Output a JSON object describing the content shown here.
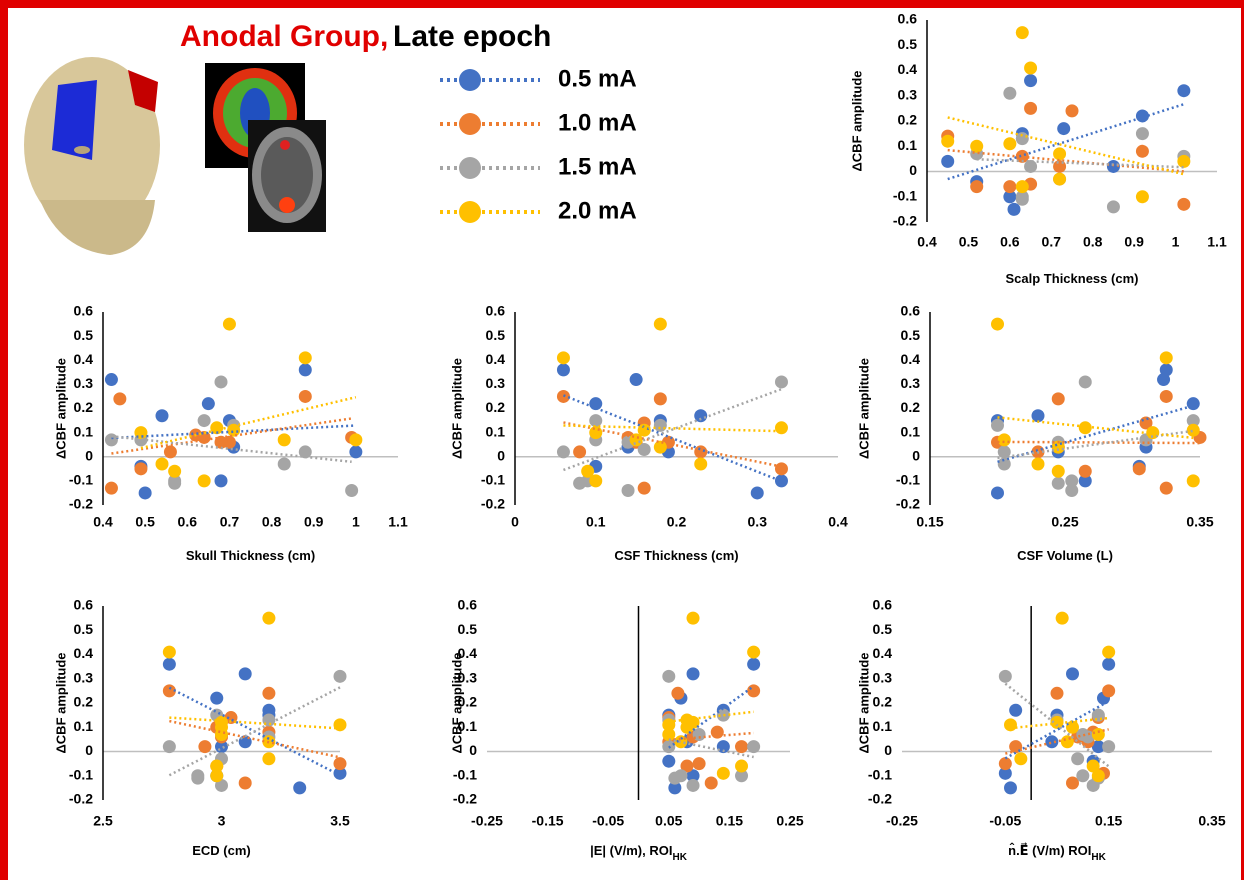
{
  "title_group": "Anodal Group,",
  "title_epoch": "Late epoch",
  "chart_data": [
    {
      "type": "scatter",
      "xlabel": "Scalp Thickness (cm)",
      "ylabel": "ΔCBF amplitude",
      "xlim": [
        0.4,
        1.1
      ],
      "xticks": [
        0.4,
        0.5,
        0.6,
        0.7,
        0.8,
        0.9,
        1,
        1.1
      ],
      "ylim": [
        -0.2,
        0.6
      ],
      "yticks": [
        -0.2,
        -0.1,
        0,
        0.1,
        0.2,
        0.3,
        0.4,
        0.5,
        0.6
      ],
      "series": [
        {
          "name": "0.5 mA",
          "color": "#4472c4",
          "x": [
            0.65,
            1.02,
            0.92,
            0.73,
            0.63,
            0.45,
            0.85,
            0.52,
            0.6,
            0.61
          ],
          "values": [
            0.36,
            0.32,
            0.22,
            0.17,
            0.15,
            0.04,
            0.02,
            -0.04,
            -0.1,
            -0.15
          ]
        },
        {
          "name": "1.0 mA",
          "color": "#ed7d31",
          "x": [
            0.65,
            0.75,
            0.45,
            0.92,
            0.63,
            0.72,
            0.65,
            0.52,
            1.02,
            0.6
          ],
          "values": [
            0.25,
            0.24,
            0.14,
            0.08,
            0.06,
            0.02,
            -0.05,
            -0.06,
            -0.13,
            -0.06
          ]
        },
        {
          "name": "1.5 mA",
          "color": "#a5a5a5",
          "x": [
            0.6,
            0.92,
            0.63,
            0.52,
            1.02,
            0.65,
            0.72,
            0.63,
            0.63,
            0.85
          ],
          "values": [
            0.31,
            0.15,
            0.13,
            0.07,
            0.06,
            0.02,
            -0.03,
            -0.1,
            -0.11,
            -0.14
          ]
        },
        {
          "name": "2.0 mA",
          "color": "#ffc000",
          "x": [
            0.63,
            0.65,
            0.45,
            0.6,
            0.52,
            0.72,
            1.02,
            0.72,
            0.63,
            0.92
          ],
          "values": [
            0.55,
            0.41,
            0.12,
            0.11,
            0.1,
            0.07,
            0.04,
            -0.03,
            -0.06,
            -0.1
          ]
        }
      ]
    },
    {
      "type": "scatter",
      "xlabel": "Skull Thickness (cm)",
      "ylabel": "ΔCBF amplitude",
      "xlim": [
        0.4,
        1.1
      ],
      "xticks": [
        0.4,
        0.5,
        0.6,
        0.7,
        0.8,
        0.9,
        1,
        1.1
      ],
      "ylim": [
        -0.2,
        0.6
      ],
      "yticks": [
        -0.2,
        -0.1,
        0,
        0.1,
        0.2,
        0.3,
        0.4,
        0.5,
        0.6
      ],
      "series": [
        {
          "name": "0.5 mA",
          "color": "#4472c4",
          "x": [
            0.88,
            0.42,
            0.65,
            0.54,
            0.7,
            0.71,
            1.0,
            0.49,
            0.68,
            0.5
          ],
          "values": [
            0.36,
            0.32,
            0.22,
            0.17,
            0.15,
            0.04,
            0.02,
            -0.04,
            -0.1,
            -0.15
          ]
        },
        {
          "name": "1.0 mA",
          "color": "#ed7d31",
          "x": [
            0.88,
            0.44,
            0.99,
            0.64,
            0.7,
            0.56,
            0.49,
            0.68,
            0.42,
            0.62
          ],
          "values": [
            0.25,
            0.24,
            0.08,
            0.08,
            0.06,
            0.02,
            -0.05,
            0.06,
            -0.13,
            0.09
          ]
        },
        {
          "name": "1.5 mA",
          "color": "#a5a5a5",
          "x": [
            0.68,
            0.64,
            0.42,
            0.49,
            0.71,
            0.88,
            0.83,
            0.57,
            0.57,
            0.99
          ],
          "values": [
            0.31,
            0.15,
            0.07,
            0.07,
            0.13,
            0.02,
            -0.03,
            -0.1,
            -0.11,
            -0.14
          ]
        },
        {
          "name": "2.0 mA",
          "color": "#ffc000",
          "x": [
            0.7,
            0.88,
            0.67,
            0.71,
            0.49,
            1.0,
            0.83,
            0.54,
            0.57,
            0.64
          ],
          "values": [
            0.55,
            0.41,
            0.12,
            0.11,
            0.1,
            0.07,
            0.07,
            -0.03,
            -0.06,
            -0.1
          ]
        }
      ]
    },
    {
      "type": "scatter",
      "xlabel": "CSF Thickness (cm)",
      "ylabel": "ΔCBF amplitude",
      "xlim": [
        0,
        0.4
      ],
      "xticks": [
        0,
        0.1,
        0.2,
        0.3,
        0.4
      ],
      "ylim": [
        -0.2,
        0.6
      ],
      "yticks": [
        -0.2,
        -0.1,
        0,
        0.1,
        0.2,
        0.3,
        0.4,
        0.5,
        0.6
      ],
      "series": [
        {
          "name": "0.5 mA",
          "color": "#4472c4",
          "x": [
            0.06,
            0.15,
            0.1,
            0.23,
            0.18,
            0.14,
            0.19,
            0.1,
            0.33,
            0.3
          ],
          "values": [
            0.36,
            0.32,
            0.22,
            0.17,
            0.15,
            0.04,
            0.02,
            -0.04,
            -0.1,
            -0.15
          ]
        },
        {
          "name": "1.0 mA",
          "color": "#ed7d31",
          "x": [
            0.06,
            0.18,
            0.16,
            0.14,
            0.15,
            0.23,
            0.33,
            0.08,
            0.16,
            0.19
          ],
          "values": [
            0.25,
            0.24,
            0.14,
            0.08,
            0.06,
            0.02,
            -0.05,
            0.02,
            -0.13,
            0.06
          ]
        },
        {
          "name": "1.5 mA",
          "color": "#a5a5a5",
          "x": [
            0.33,
            0.1,
            0.18,
            0.1,
            0.14,
            0.06,
            0.16,
            0.09,
            0.08,
            0.14
          ],
          "values": [
            0.31,
            0.15,
            0.13,
            0.07,
            0.06,
            0.02,
            0.03,
            -0.1,
            -0.11,
            -0.14
          ]
        },
        {
          "name": "2.0 mA",
          "color": "#ffc000",
          "x": [
            0.18,
            0.06,
            0.33,
            0.16,
            0.1,
            0.15,
            0.18,
            0.23,
            0.09,
            0.1
          ],
          "values": [
            0.55,
            0.41,
            0.12,
            0.11,
            0.1,
            0.07,
            0.04,
            -0.03,
            -0.06,
            -0.1
          ]
        }
      ]
    },
    {
      "type": "scatter",
      "xlabel": "CSF Volume (L)",
      "ylabel": "ΔCBF amplitude",
      "xlim": [
        0.15,
        0.35
      ],
      "xticks": [
        0.15,
        0.25,
        0.35
      ],
      "ylim": [
        -0.2,
        0.6
      ],
      "yticks": [
        -0.2,
        -0.1,
        0,
        0.1,
        0.2,
        0.3,
        0.4,
        0.5,
        0.6
      ],
      "series": [
        {
          "name": "0.5 mA",
          "color": "#4472c4",
          "x": [
            0.325,
            0.323,
            0.345,
            0.23,
            0.2,
            0.31,
            0.245,
            0.305,
            0.265,
            0.2
          ],
          "values": [
            0.36,
            0.32,
            0.22,
            0.17,
            0.15,
            0.04,
            0.02,
            -0.04,
            -0.1,
            -0.15
          ]
        },
        {
          "name": "1.0 mA",
          "color": "#ed7d31",
          "x": [
            0.325,
            0.245,
            0.31,
            0.35,
            0.2,
            0.23,
            0.305,
            0.265,
            0.325,
            0.245
          ],
          "values": [
            0.25,
            0.24,
            0.14,
            0.08,
            0.06,
            0.02,
            -0.05,
            -0.06,
            -0.13,
            0.04
          ]
        },
        {
          "name": "1.5 mA",
          "color": "#a5a5a5",
          "x": [
            0.265,
            0.345,
            0.2,
            0.31,
            0.245,
            0.205,
            0.205,
            0.255,
            0.255,
            0.245
          ],
          "values": [
            0.31,
            0.15,
            0.13,
            0.07,
            0.06,
            0.02,
            -0.03,
            -0.1,
            -0.14,
            -0.11
          ]
        },
        {
          "name": "2.0 mA",
          "color": "#ffc000",
          "x": [
            0.2,
            0.325,
            0.265,
            0.315,
            0.345,
            0.205,
            0.245,
            0.23,
            0.245,
            0.345
          ],
          "values": [
            0.55,
            0.41,
            0.12,
            0.1,
            0.11,
            0.07,
            0.04,
            -0.03,
            -0.06,
            -0.1
          ]
        }
      ]
    },
    {
      "type": "scatter",
      "xlabel": "ECD (cm)",
      "ylabel": "ΔCBF amplitude",
      "xlim": [
        2.5,
        3.5
      ],
      "xticks": [
        2.5,
        3,
        3.5
      ],
      "ylim": [
        -0.2,
        0.6
      ],
      "yticks": [
        -0.2,
        -0.1,
        0,
        0.1,
        0.2,
        0.3,
        0.4,
        0.5,
        0.6
      ],
      "series": [
        {
          "name": "0.5 mA",
          "color": "#4472c4",
          "x": [
            2.78,
            3.1,
            2.98,
            3.2,
            3.2,
            3.1,
            3.0,
            3.5,
            2.98,
            3.33
          ],
          "values": [
            0.36,
            0.32,
            0.22,
            0.17,
            0.15,
            0.04,
            0.02,
            -0.09,
            -0.1,
            -0.15
          ]
        },
        {
          "name": "1.0 mA",
          "color": "#ed7d31",
          "x": [
            2.78,
            3.2,
            3.04,
            3.2,
            3.0,
            2.93,
            3.5,
            2.98,
            3.1,
            2.98
          ],
          "values": [
            0.25,
            0.24,
            0.14,
            0.08,
            0.06,
            0.02,
            -0.05,
            -0.06,
            -0.13,
            0.1
          ]
        },
        {
          "name": "1.5 mA",
          "color": "#a5a5a5",
          "x": [
            3.5,
            2.98,
            3.2,
            3.0,
            3.2,
            2.78,
            3.0,
            2.9,
            2.9,
            3.0
          ],
          "values": [
            0.31,
            0.15,
            0.13,
            0.07,
            0.06,
            0.02,
            -0.03,
            -0.1,
            -0.11,
            -0.14
          ]
        },
        {
          "name": "2.0 mA",
          "color": "#ffc000",
          "x": [
            3.2,
            2.78,
            3.5,
            3.0,
            3.0,
            3.0,
            3.2,
            3.2,
            2.98,
            2.98
          ],
          "values": [
            0.55,
            0.41,
            0.11,
            0.12,
            0.1,
            0.07,
            0.04,
            -0.03,
            -0.06,
            -0.1
          ]
        }
      ]
    },
    {
      "type": "scatter",
      "xlabel": "|E| (V/m), ROI",
      "xlabel_sub": "HK",
      "ylabel": "ΔCBF amplitude",
      "xlim": [
        -0.25,
        0.25
      ],
      "xticks": [
        -0.25,
        -0.15,
        -0.05,
        0.05,
        0.15,
        0.25
      ],
      "ylim": [
        -0.2,
        0.6
      ],
      "yticks": [
        -0.2,
        -0.1,
        0,
        0.1,
        0.2,
        0.3,
        0.4,
        0.5,
        0.6
      ],
      "series": [
        {
          "name": "0.5 mA",
          "color": "#4472c4",
          "x": [
            0.19,
            0.09,
            0.07,
            0.14,
            0.05,
            0.08,
            0.14,
            0.05,
            0.09,
            0.06
          ],
          "values": [
            0.36,
            0.32,
            0.22,
            0.17,
            0.15,
            0.04,
            0.02,
            -0.04,
            -0.1,
            -0.15
          ]
        },
        {
          "name": "1.0 mA",
          "color": "#ed7d31",
          "x": [
            0.19,
            0.065,
            0.05,
            0.13,
            0.09,
            0.17,
            0.1,
            0.08,
            0.12,
            0.05
          ],
          "values": [
            0.25,
            0.24,
            0.14,
            0.08,
            0.06,
            0.02,
            -0.05,
            -0.06,
            -0.13,
            0.04
          ]
        },
        {
          "name": "1.5 mA",
          "color": "#a5a5a5",
          "x": [
            0.05,
            0.14,
            0.05,
            0.19,
            0.17,
            0.05,
            0.1,
            0.07,
            0.06,
            0.09
          ],
          "values": [
            0.31,
            0.15,
            0.13,
            0.02,
            -0.1,
            0.02,
            0.07,
            -0.1,
            -0.11,
            -0.14
          ]
        },
        {
          "name": "2.0 mA",
          "color": "#ffc000",
          "x": [
            0.09,
            0.19,
            0.05,
            0.09,
            0.08,
            0.05,
            0.07,
            0.14,
            0.17,
            0.08
          ],
          "values": [
            0.55,
            0.41,
            0.11,
            0.12,
            0.1,
            0.07,
            0.04,
            -0.09,
            -0.06,
            0.13
          ]
        }
      ]
    },
    {
      "type": "scatter",
      "xlabel": "n̂.E⃗ (V/m) ROI",
      "xlabel_sub": "HK",
      "ylabel": "ΔCBF amplitude",
      "xlim": [
        -0.25,
        0.35
      ],
      "xticks": [
        -0.25,
        -0.05,
        0.15,
        0.35
      ],
      "ylim": [
        -0.2,
        0.6
      ],
      "yticks": [
        -0.2,
        -0.1,
        0,
        0.1,
        0.2,
        0.3,
        0.4,
        0.5,
        0.6
      ],
      "series": [
        {
          "name": "0.5 mA",
          "color": "#4472c4",
          "x": [
            0.15,
            0.08,
            0.14,
            -0.03,
            0.05,
            0.04,
            0.13,
            0.12,
            -0.05,
            -0.04
          ],
          "values": [
            0.36,
            0.32,
            0.22,
            0.17,
            0.15,
            0.04,
            0.02,
            -0.04,
            -0.09,
            -0.15
          ]
        },
        {
          "name": "1.0 mA",
          "color": "#ed7d31",
          "x": [
            0.15,
            0.05,
            0.13,
            0.12,
            0.09,
            -0.03,
            -0.05,
            0.14,
            0.08,
            0.11
          ],
          "values": [
            0.25,
            0.24,
            0.14,
            0.08,
            0.06,
            0.02,
            -0.05,
            -0.09,
            -0.13,
            0.04
          ]
        },
        {
          "name": "1.5 mA",
          "color": "#a5a5a5",
          "x": [
            -0.05,
            0.13,
            0.05,
            0.1,
            0.11,
            0.15,
            0.09,
            0.1,
            0.13,
            0.12
          ],
          "values": [
            0.31,
            0.15,
            0.13,
            0.07,
            0.06,
            0.02,
            -0.03,
            -0.1,
            -0.11,
            -0.14
          ]
        },
        {
          "name": "2.0 mA",
          "color": "#ffc000",
          "x": [
            0.06,
            0.15,
            0.05,
            -0.04,
            0.08,
            0.13,
            0.07,
            -0.02,
            0.12,
            0.13
          ],
          "values": [
            0.55,
            0.41,
            0.12,
            0.11,
            0.1,
            0.07,
            0.04,
            -0.03,
            -0.06,
            -0.1
          ]
        }
      ]
    }
  ]
}
